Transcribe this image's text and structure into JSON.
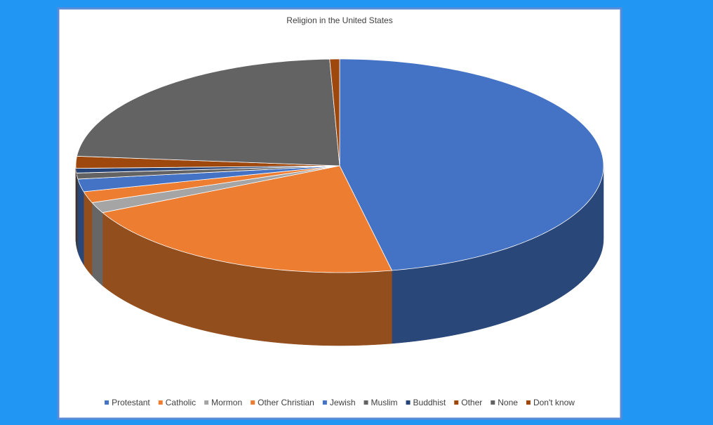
{
  "chart_data": {
    "type": "pie",
    "title": "Religion in the United States",
    "categories": [
      "Protestant",
      "Catholic",
      "Mormon",
      "Other Christian",
      "Jewish",
      "Muslim",
      "Buddhist",
      "Other",
      "None",
      "Don't know"
    ],
    "values": [
      46.5,
      20.8,
      1.6,
      1.7,
      1.9,
      0.9,
      0.7,
      1.8,
      22.8,
      0.6
    ],
    "colors": [
      "#4472c4",
      "#ed7d31",
      "#a5a5a5",
      "#ed7d31",
      "#4472c4",
      "#636363",
      "#264478",
      "#9e480e",
      "#636363",
      "#9e480e"
    ]
  }
}
